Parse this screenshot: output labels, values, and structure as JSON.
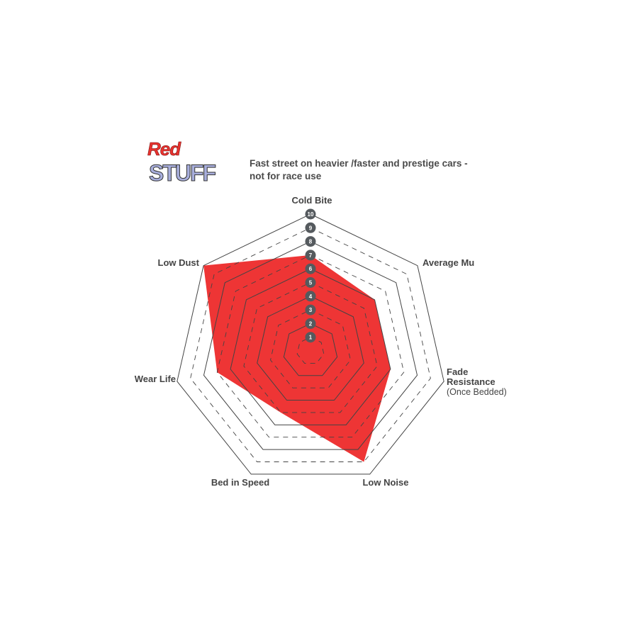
{
  "logo": {
    "line1": "Red",
    "line2": "STUFF"
  },
  "subtitle": "Fast street on heavier /faster and prestige cars - not for race use",
  "chart_data": {
    "type": "radar",
    "categories": [
      "Cold Bite",
      "Average Mu",
      "Fade Resistance (Once Bedded)",
      "Low Noise",
      "Bed in Speed",
      "Wear Life",
      "Low Dust"
    ],
    "category_lines": [
      [
        "Cold Bite"
      ],
      [
        "Average Mu"
      ],
      [
        "Fade",
        "Resistance"
      ],
      [
        "Low Noise"
      ],
      [
        "Bed in Speed"
      ],
      [
        "Wear Life"
      ],
      [
        "Low Dust"
      ]
    ],
    "category_notes": [
      "",
      "",
      "(Once Bedded)",
      "",
      "",
      "",
      ""
    ],
    "values": [
      7,
      6,
      6,
      9,
      5,
      7,
      10
    ],
    "scale_ticks": [
      "1",
      "2",
      "3",
      "4",
      "5",
      "6",
      "7",
      "8",
      "9",
      "10"
    ],
    "range": [
      0,
      10
    ],
    "fill_color": "#ee3535",
    "grid_color": "#444444",
    "badge_color": "#555a5e"
  }
}
